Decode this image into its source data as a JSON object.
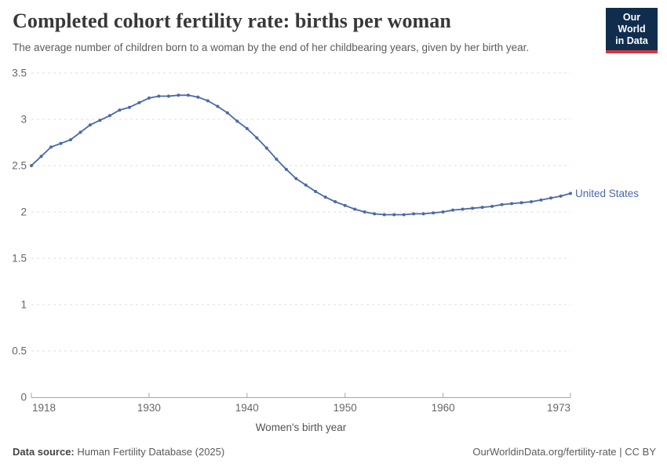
{
  "header": {
    "title": "Completed cohort fertility rate: births per woman",
    "subtitle": "The average number of children born to a woman by the end of her childbearing years, given by her birth year.",
    "logo": {
      "line1": "Our World",
      "line2": "in Data"
    }
  },
  "chart_data": {
    "type": "line",
    "title": "Completed cohort fertility rate: births per woman",
    "xlabel": "Women's birth year",
    "ylabel": "",
    "ylim": [
      0,
      3.5
    ],
    "yticks": [
      0,
      0.5,
      1,
      1.5,
      2,
      2.5,
      3,
      3.5
    ],
    "xticks": [
      1918,
      1930,
      1940,
      1950,
      1960,
      1973
    ],
    "grid": "horizontal-dashed",
    "legend_position": "end-of-line-label",
    "x": [
      1918,
      1919,
      1920,
      1921,
      1922,
      1923,
      1924,
      1925,
      1926,
      1927,
      1928,
      1929,
      1930,
      1931,
      1932,
      1933,
      1934,
      1935,
      1936,
      1937,
      1938,
      1939,
      1940,
      1941,
      1942,
      1943,
      1944,
      1945,
      1946,
      1947,
      1948,
      1949,
      1950,
      1951,
      1952,
      1953,
      1954,
      1955,
      1956,
      1957,
      1958,
      1959,
      1960,
      1961,
      1962,
      1963,
      1964,
      1965,
      1966,
      1967,
      1968,
      1969,
      1970,
      1971,
      1972,
      1973
    ],
    "series": [
      {
        "name": "United States",
        "color": "#4a69a8",
        "values": [
          2.5,
          2.6,
          2.7,
          2.74,
          2.78,
          2.86,
          2.94,
          2.99,
          3.04,
          3.1,
          3.13,
          3.18,
          3.23,
          3.25,
          3.25,
          3.26,
          3.26,
          3.24,
          3.2,
          3.14,
          3.07,
          2.98,
          2.9,
          2.8,
          2.69,
          2.57,
          2.46,
          2.36,
          2.29,
          2.22,
          2.16,
          2.11,
          2.07,
          2.03,
          2.0,
          1.98,
          1.97,
          1.97,
          1.97,
          1.98,
          1.98,
          1.99,
          2.0,
          2.02,
          2.03,
          2.04,
          2.05,
          2.06,
          2.08,
          2.09,
          2.1,
          2.11,
          2.13,
          2.15,
          2.17,
          2.2
        ]
      }
    ]
  },
  "footer": {
    "source_label": "Data source:",
    "source_value": " Human Fertility Database (2025)",
    "url_text": "OurWorldinData.org/fertility-rate",
    "separator": " | ",
    "license_text": "CC BY"
  },
  "colors": {
    "title": "#383838",
    "subtitle": "#5b5b5b",
    "tick_label": "#666666",
    "gridline": "#dcdcdc",
    "axis_line": "#a7a7a7",
    "logo_bg": "#102d4e",
    "logo_accent": "#d0393f",
    "line": "#4a69a8"
  }
}
